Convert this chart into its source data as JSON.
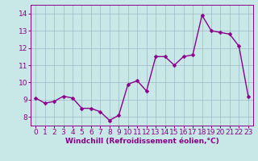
{
  "x": [
    0,
    1,
    2,
    3,
    4,
    5,
    6,
    7,
    8,
    9,
    10,
    11,
    12,
    13,
    14,
    15,
    16,
    17,
    18,
    19,
    20,
    21,
    22,
    23
  ],
  "y": [
    9.1,
    8.8,
    8.9,
    9.2,
    9.1,
    8.5,
    8.5,
    8.3,
    7.8,
    8.1,
    9.9,
    10.1,
    9.5,
    11.5,
    11.5,
    11.0,
    11.5,
    11.6,
    13.9,
    13.0,
    12.9,
    12.8,
    12.1,
    9.2
  ],
  "line_color": "#8b008b",
  "marker_color": "#8b008b",
  "bg_color": "#c8e8e8",
  "grid_color": "#a0b8c8",
  "xlabel": "Windchill (Refroidissement éolien,°C)",
  "ylim": [
    7.5,
    14.5
  ],
  "xlim": [
    -0.5,
    23.5
  ],
  "yticks": [
    8,
    9,
    10,
    11,
    12,
    13,
    14
  ],
  "xticks": [
    0,
    1,
    2,
    3,
    4,
    5,
    6,
    7,
    8,
    9,
    10,
    11,
    12,
    13,
    14,
    15,
    16,
    17,
    18,
    19,
    20,
    21,
    22,
    23
  ],
  "tick_fontsize": 6.5,
  "xlabel_fontsize": 6.5,
  "marker_size": 2.5,
  "line_width": 1.0
}
